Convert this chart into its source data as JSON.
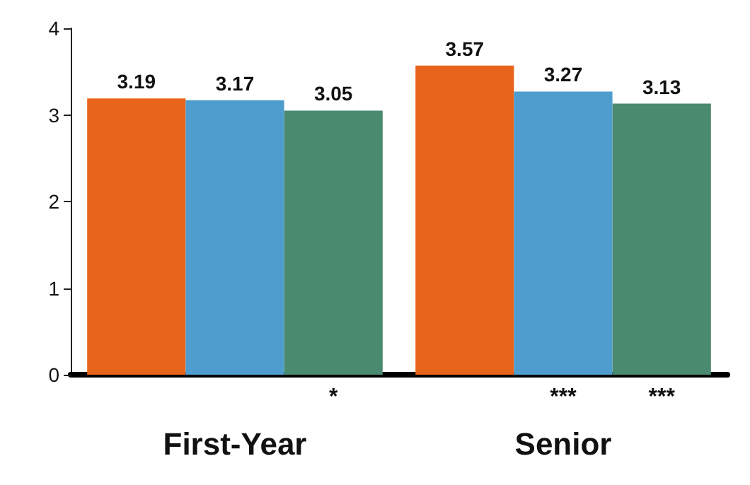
{
  "chart_data": {
    "type": "bar",
    "categories": [
      "First-Year",
      "Senior"
    ],
    "series": [
      {
        "color": "#e8641a",
        "values": [
          3.19,
          3.57
        ]
      },
      {
        "color": "#4f9dcf",
        "values": [
          3.17,
          3.27
        ]
      },
      {
        "color": "#4a8a6e",
        "values": [
          3.05,
          3.13
        ]
      }
    ],
    "ylim": [
      0,
      4
    ],
    "yticks": [
      0,
      1,
      2,
      3,
      4
    ],
    "grid": false,
    "data_labels": true,
    "annotations": [
      "*",
      "***",
      "***"
    ]
  }
}
